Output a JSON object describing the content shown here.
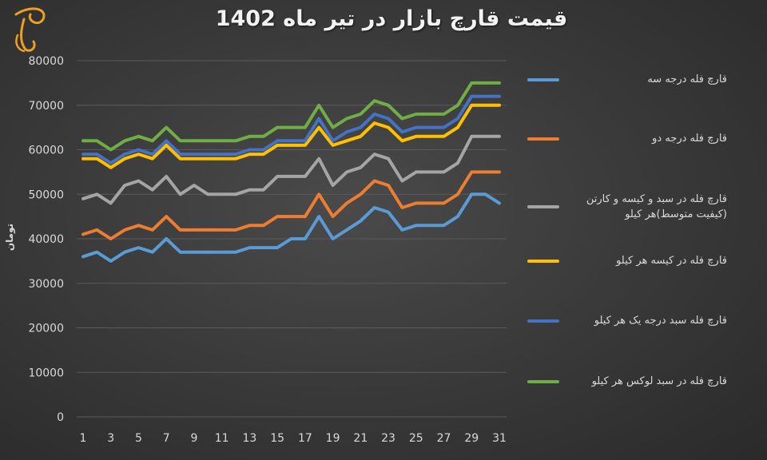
{
  "chart_data": {
    "type": "line",
    "title": "قیمت قارچ بازار در تیر ماه 1402",
    "ylabel": "تومان",
    "xlabel": "",
    "ylim": [
      0,
      80000
    ],
    "yticks": [
      0,
      10000,
      20000,
      30000,
      40000,
      50000,
      60000,
      70000,
      80000
    ],
    "x": [
      1,
      2,
      3,
      4,
      5,
      6,
      7,
      8,
      9,
      10,
      11,
      12,
      13,
      14,
      15,
      16,
      17,
      18,
      19,
      20,
      21,
      22,
      23,
      24,
      25,
      26,
      27,
      28,
      29,
      30,
      31
    ],
    "xtick_labels": [
      1,
      3,
      5,
      7,
      9,
      11,
      13,
      15,
      17,
      19,
      21,
      23,
      25,
      27,
      29,
      31
    ],
    "grid": true,
    "legend_position": "right",
    "series": [
      {
        "name": "قارچ فله درجه سه",
        "color": "#5b9bd5",
        "values": [
          36000,
          37000,
          35000,
          37000,
          38000,
          37000,
          40000,
          37000,
          37000,
          37000,
          37000,
          37000,
          38000,
          38000,
          38000,
          40000,
          40000,
          45000,
          40000,
          42000,
          44000,
          47000,
          46000,
          42000,
          43000,
          43000,
          43000,
          45000,
          50000,
          50000,
          48000
        ]
      },
      {
        "name": "قارچ فله درجه دو",
        "color": "#ed7d31",
        "values": [
          41000,
          42000,
          40000,
          42000,
          43000,
          42000,
          45000,
          42000,
          42000,
          42000,
          42000,
          42000,
          43000,
          43000,
          45000,
          45000,
          45000,
          50000,
          45000,
          48000,
          50000,
          53000,
          52000,
          47000,
          48000,
          48000,
          48000,
          50000,
          55000,
          55000,
          55000
        ]
      },
      {
        "name": "قارچ فله در سبد و کیسه و کارتن (کیفیت متوسط)هر کیلو",
        "color": "#a5a5a5",
        "values": [
          49000,
          50000,
          48000,
          52000,
          53000,
          51000,
          54000,
          50000,
          52000,
          50000,
          50000,
          50000,
          51000,
          51000,
          54000,
          54000,
          54000,
          58000,
          52000,
          55000,
          56000,
          59000,
          58000,
          53000,
          55000,
          55000,
          55000,
          57000,
          63000,
          63000,
          63000
        ]
      },
      {
        "name": "قارچ فله در کیسه هر کیلو",
        "color": "#ffc000",
        "values": [
          58000,
          58000,
          56000,
          58000,
          59000,
          58000,
          61000,
          58000,
          58000,
          58000,
          58000,
          58000,
          59000,
          59000,
          61000,
          61000,
          61000,
          65000,
          61000,
          62000,
          63000,
          66000,
          65000,
          62000,
          63000,
          63000,
          63000,
          65000,
          70000,
          70000,
          70000
        ]
      },
      {
        "name": "قارچ فله سبد درجه یک هر کیلو",
        "color": "#4472c4",
        "values": [
          59000,
          59000,
          57000,
          59000,
          60000,
          59000,
          62000,
          59000,
          59000,
          59000,
          59000,
          59000,
          60000,
          60000,
          62000,
          62000,
          62000,
          67000,
          62000,
          64000,
          65000,
          68000,
          67000,
          64000,
          65000,
          65000,
          65000,
          67000,
          72000,
          72000,
          72000
        ]
      },
      {
        "name": "قارچ فله در سبد لوکس هر کیلو",
        "color": "#70ad47",
        "values": [
          62000,
          62000,
          60000,
          62000,
          63000,
          62000,
          65000,
          62000,
          62000,
          62000,
          62000,
          62000,
          63000,
          63000,
          65000,
          65000,
          65000,
          70000,
          65000,
          67000,
          68000,
          71000,
          70000,
          67000,
          68000,
          68000,
          68000,
          70000,
          75000,
          75000,
          75000
        ]
      }
    ]
  }
}
